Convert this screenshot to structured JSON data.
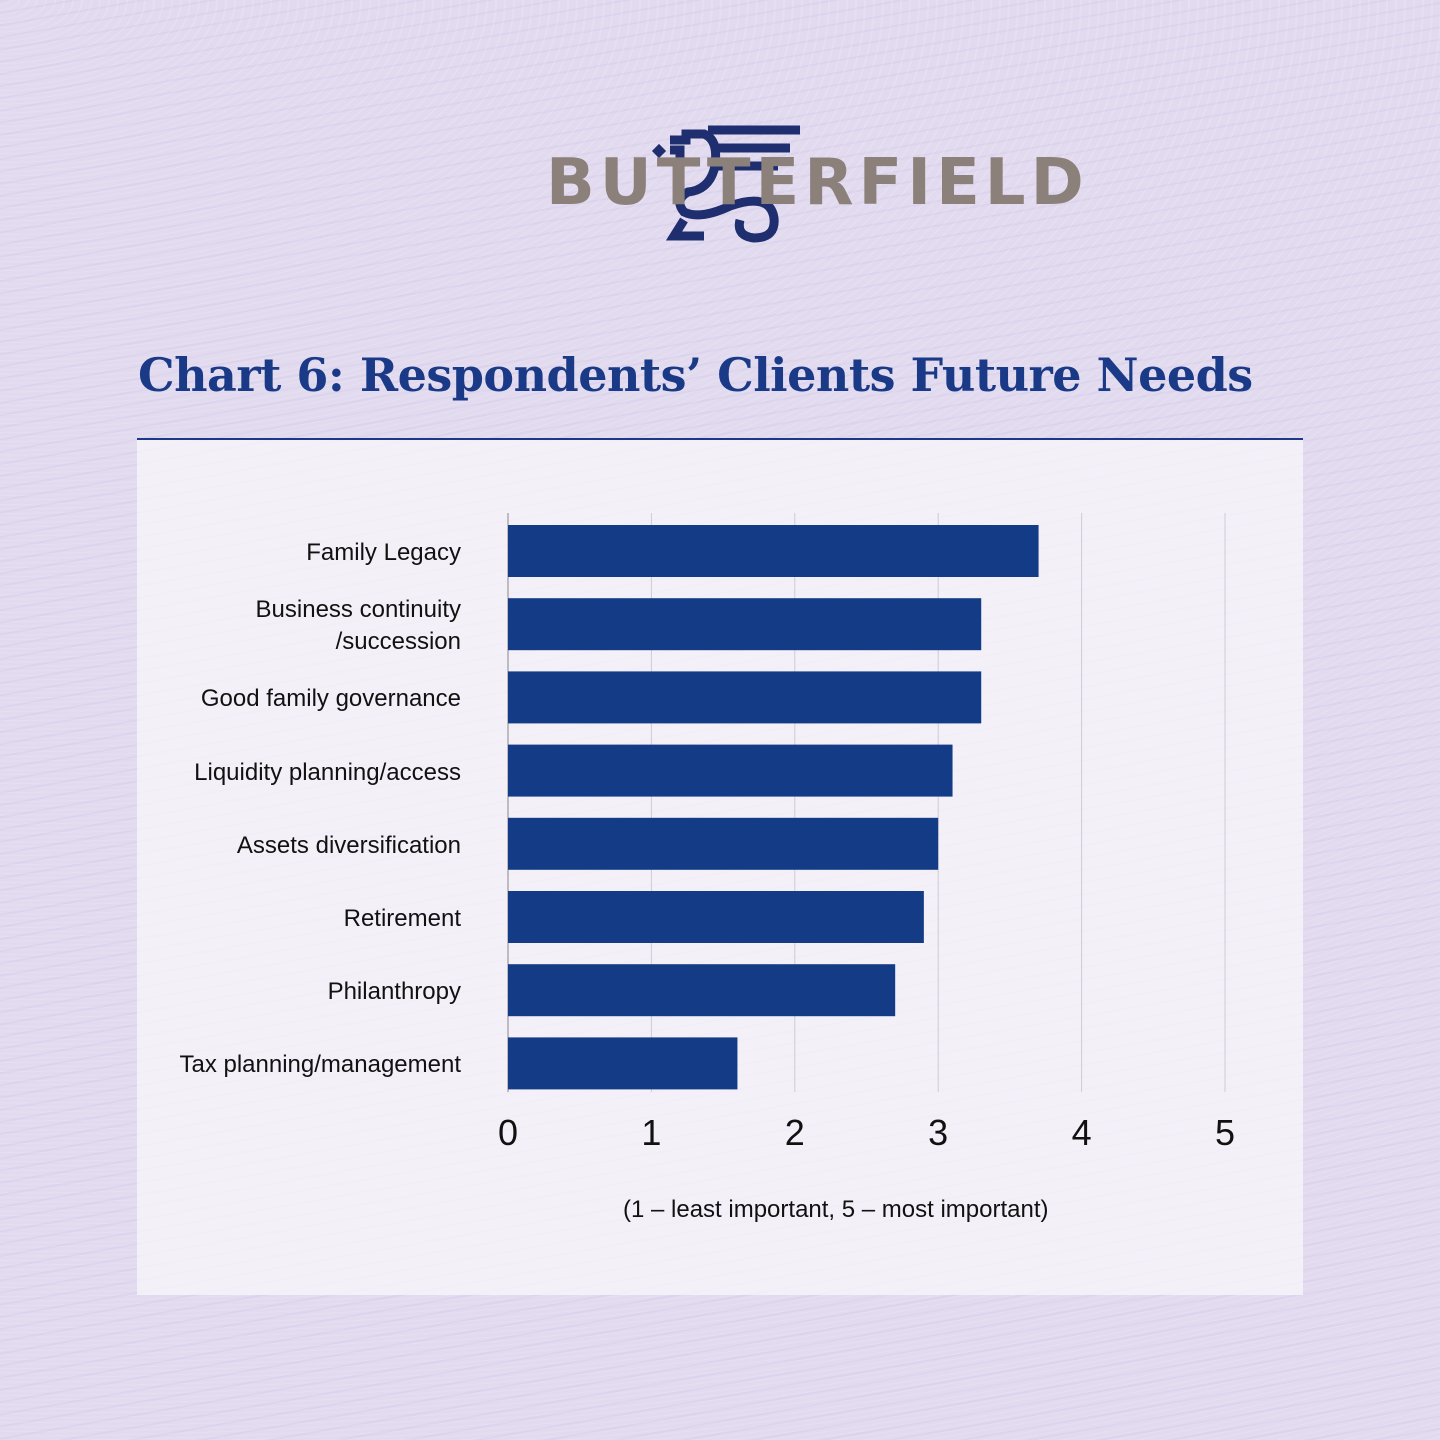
{
  "brand": {
    "name": "BUTTERFIELD",
    "logo_icon": "griffin-icon"
  },
  "title": "Chart 6: Respondents’ Clients Future Needs",
  "chart_data": {
    "type": "bar",
    "orientation": "horizontal",
    "title": "Chart 6: Respondents’ Clients Future Needs",
    "categories": [
      "Family Legacy",
      "Business continuity /succession",
      "Good family governance",
      "Liquidity planning/access",
      "Assets diversification",
      "Retirement",
      "Philanthropy",
      "Tax planning/management"
    ],
    "category_lines": [
      [
        "Family Legacy"
      ],
      [
        "Business continuity",
        "/succession"
      ],
      [
        "Good family governance"
      ],
      [
        "Liquidity planning/access"
      ],
      [
        "Assets diversification"
      ],
      [
        "Retirement"
      ],
      [
        "Philanthropy"
      ],
      [
        "Tax planning/management"
      ]
    ],
    "values": [
      3.7,
      3.3,
      3.3,
      3.1,
      3.0,
      2.9,
      2.7,
      1.6
    ],
    "xlim": [
      0,
      5
    ],
    "xticks": [
      "0",
      "1",
      "2",
      "3",
      "4",
      "5"
    ],
    "xlabel": "(1 – least important, 5 – most important)",
    "grid": true,
    "bar_color": "#143c86"
  }
}
